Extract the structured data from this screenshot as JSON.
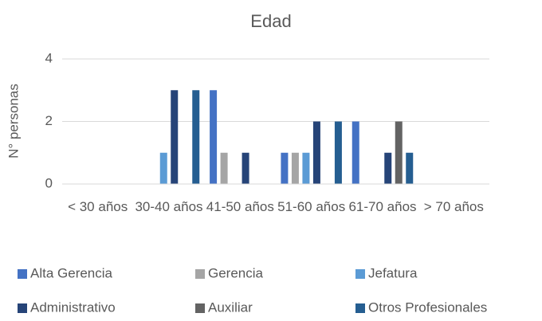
{
  "chart_data": {
    "type": "bar",
    "title": "Edad",
    "y_label": "N° personas",
    "categories": [
      "< 30 años",
      "30-40 años",
      "41-50 años",
      "51-60 años",
      "61-70 años",
      "> 70 años"
    ],
    "series": [
      {
        "name": "Alta Gerencia",
        "color": "#4472c4",
        "values": [
          0,
          0,
          3,
          1,
          2,
          0
        ]
      },
      {
        "name": "Gerencia",
        "color": "#a5a5a5",
        "values": [
          0,
          0,
          1,
          1,
          0,
          0
        ]
      },
      {
        "name": "Jefatura",
        "color": "#5b9bd5",
        "values": [
          0,
          1,
          0,
          1,
          0,
          0
        ]
      },
      {
        "name": "Administrativo",
        "color": "#264478",
        "values": [
          0,
          3,
          1,
          2,
          1,
          0
        ]
      },
      {
        "name": "Auxiliar",
        "color": "#636363",
        "values": [
          0,
          0,
          0,
          0,
          2,
          0
        ]
      },
      {
        "name": "Otros Profesionales",
        "color": "#255e91",
        "values": [
          0,
          3,
          0,
          2,
          1,
          0
        ]
      }
    ],
    "ylim": [
      0,
      4
    ],
    "yticks": [
      0,
      2,
      4
    ],
    "grid": true,
    "legend": "bottom"
  }
}
